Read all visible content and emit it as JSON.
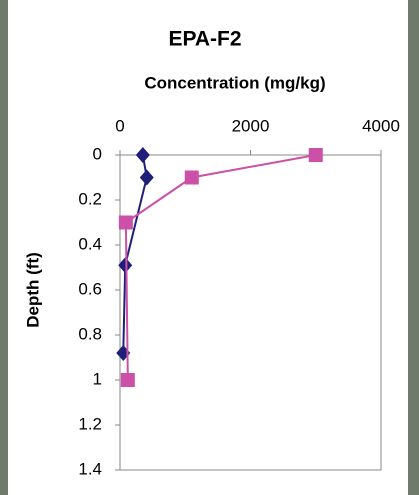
{
  "chart_data": {
    "type": "line",
    "title": "EPA-F2",
    "x_label": "Concentration (mg/kg)",
    "y_label": "Depth (ft)",
    "xlim": [
      0,
      4000
    ],
    "xticks": [
      0,
      2000,
      4000
    ],
    "ylim": [
      0,
      1.4
    ],
    "yticks": [
      0,
      0.2,
      0.4,
      0.6,
      0.8,
      1,
      1.2,
      1.4
    ],
    "y_inverted": true,
    "x_axis_position": "top",
    "series": [
      {
        "color": "#1f1f7a",
        "marker": "diamond",
        "x": [
          350,
          410,
          80,
          50
        ],
        "y": [
          0,
          0.1,
          0.49,
          0.88
        ]
      },
      {
        "color": "#cc4fa8",
        "marker": "square",
        "x": [
          3000,
          1100,
          90,
          120
        ],
        "y": [
          0,
          0.1,
          0.3,
          1.0
        ]
      }
    ]
  }
}
